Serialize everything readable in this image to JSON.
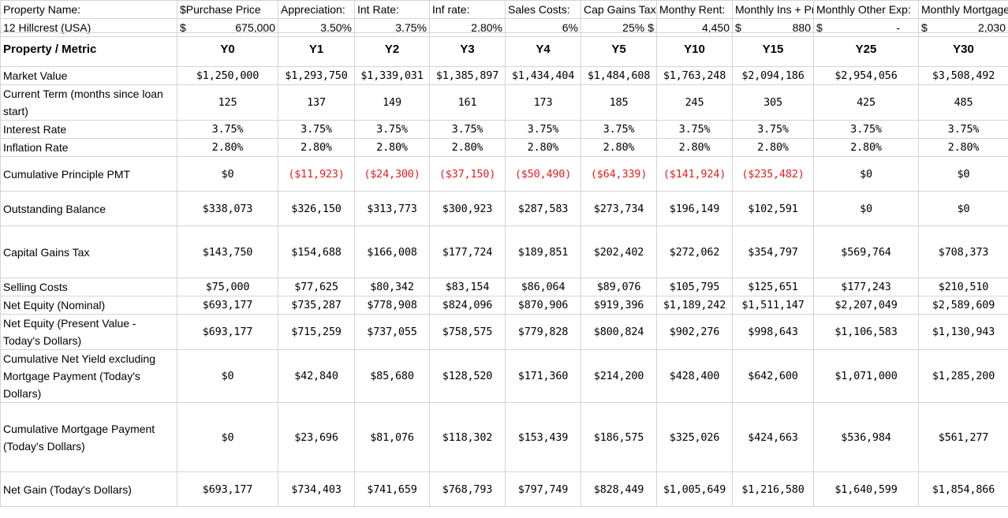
{
  "inputs": {
    "labels": [
      "Property Name:",
      "$Purchase Price",
      "Appreciation:",
      "Int Rate:",
      "Inf rate:",
      "Sales Costs:",
      "Cap Gains Tax:",
      "Monthy Rent:",
      "Monthly Ins + Pr",
      "Monthly Other Exp:",
      "Monthly Mortgage"
    ],
    "property_name": "12 Hillcrest (USA)",
    "currency_symbol": "$",
    "purchase_price": "675,000",
    "appreciation": "3.50%",
    "int_rate": "3.75%",
    "inf_rate": "2.80%",
    "sales_costs": "6%",
    "cap_gains_tax": "25%",
    "monthly_rent": "4,450",
    "monthly_ins": "880",
    "monthly_other_exp": "-",
    "monthly_mortgage": "2,030"
  },
  "table": {
    "corner_label": "Property / Metric",
    "years": [
      "Y0",
      "Y1",
      "Y2",
      "Y3",
      "Y4",
      "Y5",
      "Y10",
      "Y15",
      "Y25",
      "Y30"
    ],
    "rows": [
      {
        "label": "Market Value",
        "values": [
          "$1,250,000",
          "$1,293,750",
          "$1,339,031",
          "$1,385,897",
          "$1,434,404",
          "$1,484,608",
          "$1,763,248",
          "$2,094,186",
          "$2,954,056",
          "$3,508,492"
        ]
      },
      {
        "label": "Current Term (months since loan start)",
        "values": [
          "125",
          "137",
          "149",
          "161",
          "173",
          "185",
          "245",
          "305",
          "425",
          "485"
        ]
      },
      {
        "label": "Interest Rate",
        "values": [
          "3.75%",
          "3.75%",
          "3.75%",
          "3.75%",
          "3.75%",
          "3.75%",
          "3.75%",
          "3.75%",
          "3.75%",
          "3.75%"
        ]
      },
      {
        "label": "Inflation Rate",
        "values": [
          "2.80%",
          "2.80%",
          "2.80%",
          "2.80%",
          "2.80%",
          "2.80%",
          "2.80%",
          "2.80%",
          "2.80%",
          "2.80%"
        ]
      },
      {
        "label": "Cumulative Principle PMT",
        "values": [
          "$0",
          "($11,923)",
          "($24,300)",
          "($37,150)",
          "($50,490)",
          "($64,339)",
          "($141,924)",
          "($235,482)",
          "$0",
          "$0"
        ]
      },
      {
        "label": "Outstanding Balance",
        "values": [
          "$338,073",
          "$326,150",
          "$313,773",
          "$300,923",
          "$287,583",
          "$273,734",
          "$196,149",
          "$102,591",
          "$0",
          "$0"
        ]
      },
      {
        "label": "Capital Gains Tax",
        "values": [
          "$143,750",
          "$154,688",
          "$166,008",
          "$177,724",
          "$189,851",
          "$202,402",
          "$272,062",
          "$354,797",
          "$569,764",
          "$708,373"
        ]
      },
      {
        "label": "Selling Costs",
        "values": [
          "$75,000",
          "$77,625",
          "$80,342",
          "$83,154",
          "$86,064",
          "$89,076",
          "$105,795",
          "$125,651",
          "$177,243",
          "$210,510"
        ]
      },
      {
        "label": "Net Equity (Nominal)",
        "values": [
          "$693,177",
          "$735,287",
          "$778,908",
          "$824,096",
          "$870,906",
          "$919,396",
          "$1,189,242",
          "$1,511,147",
          "$2,207,049",
          "$2,589,609"
        ]
      },
      {
        "label": "Net Equity (Present Value - Today's Dollars)",
        "values": [
          "$693,177",
          "$715,259",
          "$737,055",
          "$758,575",
          "$779,828",
          "$800,824",
          "$902,276",
          "$998,643",
          "$1,106,583",
          "$1,130,943"
        ]
      },
      {
        "label": "Cumulative Net Yield excluding Mortgage Payment (Today's Dollars)",
        "values": [
          "$0",
          "$42,840",
          "$85,680",
          "$128,520",
          "$171,360",
          "$214,200",
          "$428,400",
          "$642,600",
          "$1,071,000",
          "$1,285,200"
        ]
      },
      {
        "label": "Cumulative Mortgage Payment (Today's Dollars)",
        "values": [
          "$0",
          "$23,696",
          "$81,076",
          "$118,302",
          "$153,439",
          "$186,575",
          "$325,026",
          "$424,663",
          "$536,984",
          "$561,277"
        ]
      },
      {
        "label": "Net Gain (Today's Dollars)",
        "values": [
          "$693,177",
          "$734,403",
          "$741,659",
          "$768,793",
          "$797,749",
          "$828,449",
          "$1,005,649",
          "$1,216,580",
          "$1,640,599",
          "$1,854,866"
        ]
      }
    ]
  },
  "colors": {
    "negative": "#e02020",
    "grid": "#d4d4d4"
  }
}
